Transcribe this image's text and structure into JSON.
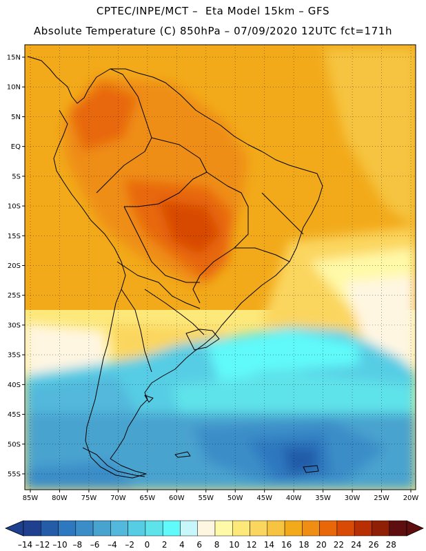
{
  "header": {
    "line1": "CPTEC/INPE/MCT –  Eta Model 15km – GFS",
    "line2": "Absolute Temperature (C) 850hPa – 07/09/2020 12UTC fct=171h"
  },
  "map": {
    "lat_labels": [
      "15N",
      "10N",
      "5N",
      "EQ",
      "5S",
      "10S",
      "15S",
      "20S",
      "25S",
      "30S",
      "35S",
      "40S",
      "45S",
      "50S",
      "55S"
    ],
    "lon_labels": [
      "85W",
      "80W",
      "75W",
      "70W",
      "65W",
      "60W",
      "55W",
      "50W",
      "45W",
      "40W",
      "35W",
      "30W",
      "25W",
      "20W"
    ]
  },
  "colorbar": {
    "colors": [
      "#1f3f8f",
      "#245ca8",
      "#2d78bf",
      "#3b8dc8",
      "#48a3cf",
      "#52b8dc",
      "#56cde4",
      "#5fe3ea",
      "#61fafa",
      "#c8f7fb",
      "#fff6e2",
      "#fff9a8",
      "#fde87a",
      "#fbd65e",
      "#f6c440",
      "#f2aa1a",
      "#ef8e12",
      "#e86809",
      "#d84a05",
      "#b82f03",
      "#8f1f05",
      "#5e0e0e"
    ],
    "labels": [
      "–14",
      "–12",
      "–10",
      "–8",
      "–6",
      "–4",
      "–2",
      "0",
      "2",
      "4",
      "6",
      "8",
      "10",
      "12",
      "14",
      "16",
      "18",
      "20",
      "22",
      "24",
      "26",
      "28"
    ]
  }
}
